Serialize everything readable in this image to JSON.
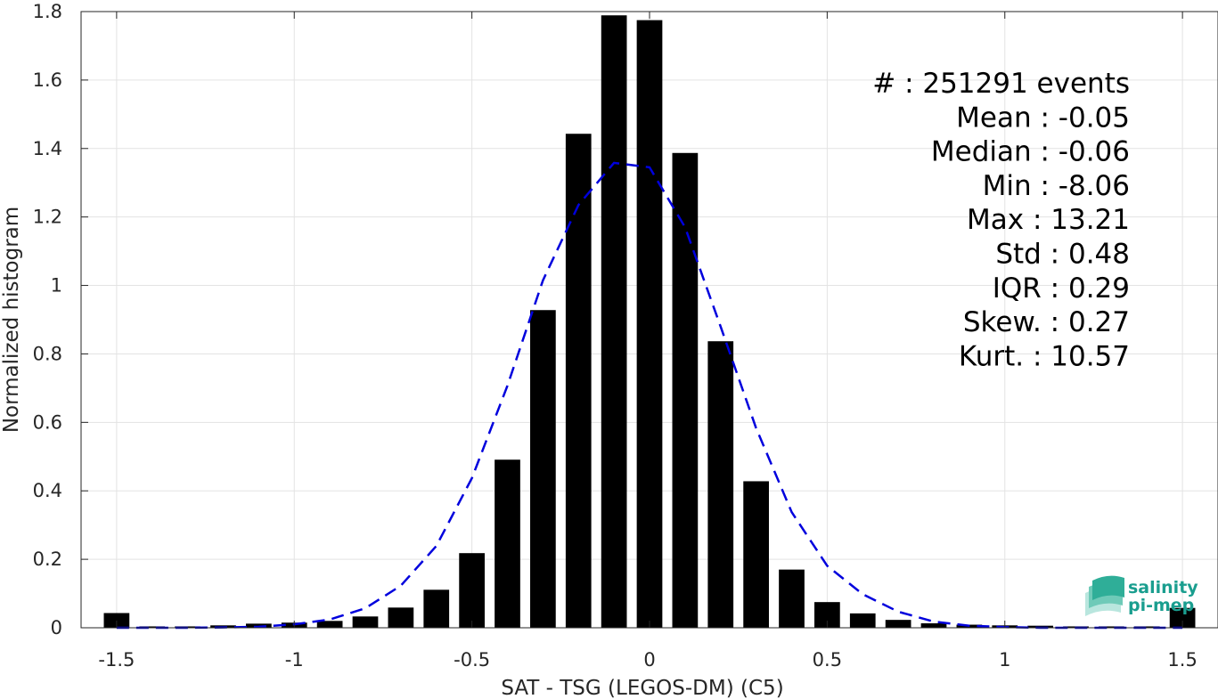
{
  "chart_data": {
    "type": "bar",
    "xlabel": "SAT - TSG (LEGOS-DM) (C5)",
    "ylabel": "Normalized histogram",
    "xlim": [
      -1.6,
      1.6
    ],
    "ylim": [
      0,
      1.8
    ],
    "xticks": [
      -1.5,
      -1,
      -0.5,
      0,
      0.5,
      1,
      1.5
    ],
    "xtick_labels": [
      "-1.5",
      "-1",
      "-0.5",
      "0",
      "0.5",
      "1",
      "1.5"
    ],
    "yticks": [
      0,
      0.2,
      0.4,
      0.6,
      0.8,
      1,
      1.2,
      1.4,
      1.6,
      1.8
    ],
    "ytick_labels": [
      "0",
      "0.2",
      "0.4",
      "0.6",
      "0.8",
      "1",
      "1.2",
      "1.4",
      "1.6",
      "1.8"
    ],
    "grid": true,
    "bin_width": 0.1,
    "bars": {
      "x": [
        -1.5,
        -1.4,
        -1.3,
        -1.2,
        -1.1,
        -1.0,
        -0.9,
        -0.8,
        -0.7,
        -0.6,
        -0.5,
        -0.4,
        -0.3,
        -0.2,
        -0.1,
        0.0,
        0.1,
        0.2,
        0.3,
        0.4,
        0.5,
        0.6,
        0.7,
        0.8,
        0.9,
        1.0,
        1.1,
        1.2,
        1.3,
        1.4,
        1.5
      ],
      "values": [
        0.043,
        0.004,
        0.004,
        0.007,
        0.012,
        0.015,
        0.02,
        0.033,
        0.059,
        0.111,
        0.218,
        0.491,
        0.928,
        1.443,
        1.789,
        1.775,
        1.387,
        0.837,
        0.428,
        0.17,
        0.075,
        0.042,
        0.023,
        0.013,
        0.009,
        0.007,
        0.006,
        0.004,
        0.004,
        0.004,
        0.058
      ],
      "color": "#000000"
    },
    "fit_curve": {
      "style": "dashed",
      "color": "#0000dd",
      "x": [
        -1.5,
        -1.4,
        -1.3,
        -1.2,
        -1.1,
        -1.0,
        -0.9,
        -0.8,
        -0.7,
        -0.6,
        -0.5,
        -0.4,
        -0.3,
        -0.2,
        -0.1,
        0.0,
        0.1,
        0.2,
        0.3,
        0.4,
        0.5,
        0.6,
        0.7,
        0.8,
        0.9,
        1.0,
        1.1,
        1.2,
        1.3,
        1.4,
        1.5
      ],
      "values": [
        0.0,
        0.0,
        0.0,
        0.001,
        0.003,
        0.01,
        0.024,
        0.057,
        0.123,
        0.239,
        0.437,
        0.707,
        1.015,
        1.235,
        1.358,
        1.345,
        1.17,
        0.88,
        0.583,
        0.338,
        0.181,
        0.098,
        0.047,
        0.018,
        0.006,
        0.002,
        0.0,
        0.0,
        0.0,
        0.0,
        0.0
      ]
    }
  },
  "stats": [
    {
      "label": "#  ",
      "value": "251291 events"
    },
    {
      "label": "Mean",
      "value": "-0.05"
    },
    {
      "label": "Median",
      "value": "-0.06"
    },
    {
      "label": "Min",
      "value": "-8.06"
    },
    {
      "label": "Max",
      "value": "13.21"
    },
    {
      "label": "Std",
      "value": "0.48"
    },
    {
      "label": "IQR",
      "value": "0.29"
    },
    {
      "label": "Skew.",
      "value": "0.27"
    },
    {
      "label": "Kurt.",
      "value": "10.57"
    }
  ],
  "logo": {
    "line1": "salinity",
    "line2": "pi-mep",
    "color": "#1a9e8f"
  }
}
